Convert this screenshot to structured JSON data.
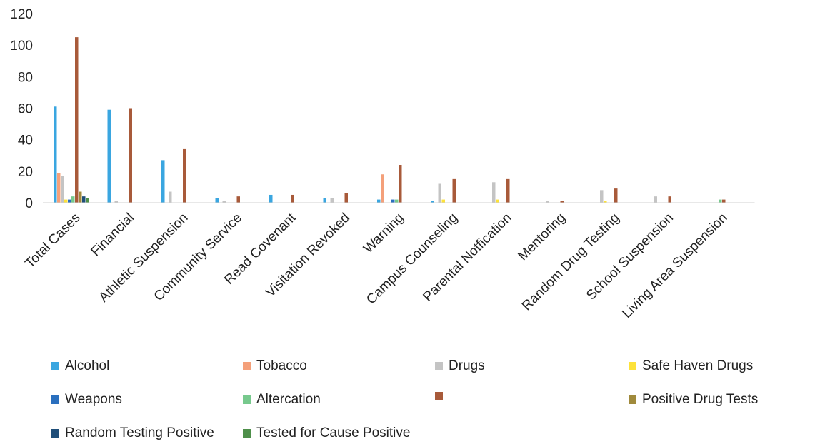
{
  "chart_data": {
    "type": "bar",
    "title": "",
    "xlabel": "",
    "ylabel": "",
    "ylim": [
      0,
      120
    ],
    "yticks": [
      0,
      20,
      40,
      60,
      80,
      100,
      120
    ],
    "grid": false,
    "legend_position": "bottom",
    "categories": [
      "Total Cases",
      "Financial",
      "Athletic Suspension",
      "Community Service",
      "Read Covenant",
      "Visitation Revoked",
      "Warning",
      "Campus Counseling",
      "Parental Notfication",
      "Mentoring",
      "Random Drug Testing",
      "School Suspension",
      "Living Area Suspension"
    ],
    "series": [
      {
        "name": "Alcohol",
        "color": "#3aa6e0",
        "values": [
          61,
          59,
          27,
          3,
          5,
          3,
          2,
          1,
          0,
          0,
          0,
          0,
          0
        ]
      },
      {
        "name": "Tobacco",
        "color": "#f4a07a",
        "values": [
          19,
          0,
          0,
          0,
          0,
          0,
          18,
          0,
          0,
          0,
          0,
          0,
          0
        ]
      },
      {
        "name": "Drugs",
        "color": "#c4c4c4",
        "values": [
          17,
          1,
          7,
          1,
          0,
          3,
          0,
          12,
          13,
          1,
          8,
          4,
          0
        ]
      },
      {
        "name": "Safe Haven Drugs",
        "color": "#fde23a",
        "values": [
          2,
          0,
          0,
          0,
          0,
          0,
          0,
          2,
          2,
          0,
          1,
          0,
          0
        ]
      },
      {
        "name": "Weapons",
        "color": "#2a6fbe",
        "values": [
          2,
          0,
          0,
          0,
          0,
          0,
          2,
          0,
          0,
          0,
          0,
          0,
          0
        ]
      },
      {
        "name": "Altercation",
        "color": "#77c98d",
        "values": [
          4,
          0,
          0,
          0,
          0,
          0,
          2,
          0,
          0,
          0,
          0,
          0,
          2
        ]
      },
      {
        "name": "",
        "color": "#a85a3a",
        "values": [
          105,
          60,
          34,
          4,
          5,
          6,
          24,
          15,
          15,
          1,
          9,
          4,
          2
        ]
      },
      {
        "name": "Positive Drug Tests",
        "color": "#a08a3c",
        "values": [
          7,
          0,
          0,
          0,
          0,
          0,
          0,
          0,
          0,
          0,
          0,
          0,
          0
        ]
      },
      {
        "name": "Random Testing Positive",
        "color": "#1f4e79",
        "values": [
          4,
          0,
          0,
          0,
          0,
          0,
          0,
          0,
          0,
          0,
          0,
          0,
          0
        ]
      },
      {
        "name": "Tested for Cause Positive",
        "color": "#4e8f4a",
        "values": [
          3,
          0,
          0,
          0,
          0,
          0,
          0,
          0,
          0,
          0,
          0,
          0,
          0
        ]
      }
    ]
  }
}
